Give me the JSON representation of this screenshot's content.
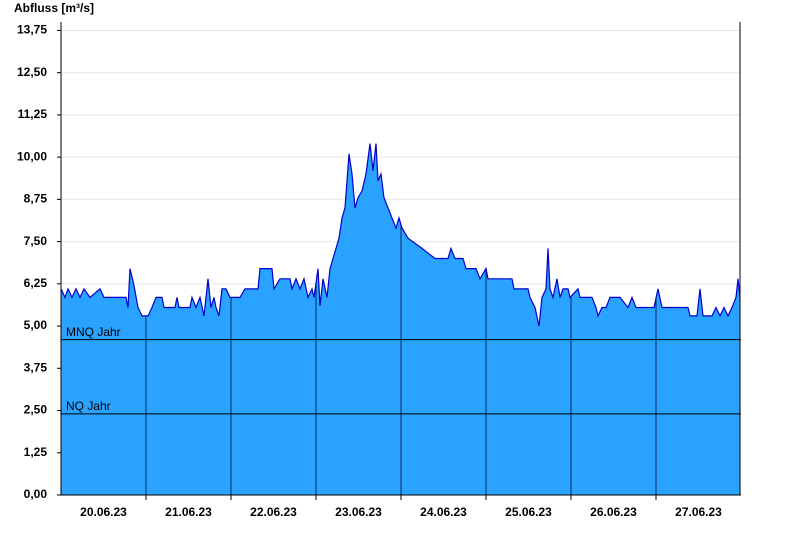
{
  "chart_data": {
    "type": "area",
    "y_label": "Abfluss [m³/s]",
    "xlim": [
      0,
      8
    ],
    "xticks": [
      {
        "value": 0.5,
        "label": "20.06.23"
      },
      {
        "value": 1.5,
        "label": "21.06.23"
      },
      {
        "value": 2.5,
        "label": "22.06.23"
      },
      {
        "value": 3.5,
        "label": "23.06.23"
      },
      {
        "value": 4.5,
        "label": "24.06.23"
      },
      {
        "value": 5.5,
        "label": "25.06.23"
      },
      {
        "value": 6.5,
        "label": "26.06.23"
      },
      {
        "value": 7.5,
        "label": "27.06.23"
      }
    ],
    "ylim": [
      0,
      14
    ],
    "yticks": [
      {
        "value": 0,
        "label": "0,00"
      },
      {
        "value": 1.25,
        "label": "1,25"
      },
      {
        "value": 2.5,
        "label": "2,50"
      },
      {
        "value": 3.75,
        "label": "3,75"
      },
      {
        "value": 5,
        "label": "5,00"
      },
      {
        "value": 6.25,
        "label": "6,25"
      },
      {
        "value": 7.5,
        "label": "7,50"
      },
      {
        "value": 8.75,
        "label": "8,75"
      },
      {
        "value": 10,
        "label": "10,00"
      },
      {
        "value": 11.25,
        "label": "11,25"
      },
      {
        "value": 12.5,
        "label": "12,50"
      },
      {
        "value": 13.75,
        "label": "13,75"
      }
    ],
    "grid": true,
    "annotations": [
      {
        "label": "MNQ Jahr",
        "value": 4.6
      },
      {
        "label": "NQ Jahr",
        "value": 2.4
      }
    ],
    "series": [
      {
        "name": "Abfluss",
        "color": "#0000cc",
        "fill": "#29a3ff",
        "x": [
          0,
          0.047,
          0.082,
          0.129,
          0.176,
          0.224,
          0.271,
          0.341,
          0.459,
          0.506,
          0.765,
          0.788,
          0.812,
          0.859,
          0.906,
          0.953,
          1.024,
          1.071,
          1.118,
          1.188,
          1.212,
          1.341,
          1.365,
          1.388,
          1.518,
          1.541,
          1.588,
          1.635,
          1.682,
          1.729,
          1.765,
          1.8,
          1.824,
          1.859,
          1.894,
          1.941,
          1.988,
          2.106,
          2.165,
          2.318,
          2.341,
          2.482,
          2.506,
          2.576,
          2.694,
          2.718,
          2.765,
          2.812,
          2.859,
          2.906,
          2.953,
          2.976,
          3.024,
          3.047,
          3.082,
          3.129,
          3.165,
          3.2,
          3.235,
          3.271,
          3.306,
          3.341,
          3.388,
          3.424,
          3.459,
          3.494,
          3.541,
          3.588,
          3.635,
          3.671,
          3.706,
          3.729,
          3.765,
          3.8,
          3.847,
          3.894,
          3.941,
          3.976,
          4.012,
          4.082,
          4.247,
          4.4,
          4.553,
          4.588,
          4.635,
          4.729,
          4.765,
          4.882,
          4.929,
          5,
          5.024,
          5.306,
          5.329,
          5.494,
          5.518,
          5.576,
          5.624,
          5.659,
          5.706,
          5.729,
          5.753,
          5.788,
          5.835,
          5.871,
          5.906,
          5.965,
          5.988,
          6.082,
          6.106,
          6.247,
          6.294,
          6.318,
          6.365,
          6.412,
          6.459,
          6.576,
          6.671,
          6.718,
          6.765,
          6.976,
          7.024,
          7.071,
          7.188,
          7.376,
          7.4,
          7.482,
          7.518,
          7.553,
          7.659,
          7.706,
          7.753,
          7.8,
          7.847,
          7.894,
          7.941,
          7.965,
          7.988
        ],
        "values": [
          6.1,
          5.85,
          6.1,
          5.85,
          6.1,
          5.85,
          6.1,
          5.85,
          6.1,
          5.85,
          5.85,
          5.55,
          6.7,
          6.2,
          5.55,
          5.3,
          5.3,
          5.55,
          5.85,
          5.85,
          5.55,
          5.55,
          5.85,
          5.55,
          5.55,
          5.85,
          5.55,
          5.85,
          5.3,
          6.4,
          5.55,
          5.85,
          5.55,
          5.3,
          6.1,
          6.1,
          5.85,
          5.85,
          6.1,
          6.1,
          6.7,
          6.7,
          6.1,
          6.4,
          6.4,
          6.1,
          6.4,
          6.1,
          6.4,
          5.85,
          6.1,
          5.85,
          6.7,
          5.6,
          6.4,
          5.85,
          6.7,
          7.0,
          7.3,
          7.6,
          8.2,
          8.5,
          10.1,
          9.5,
          8.5,
          8.8,
          9.0,
          9.5,
          10.4,
          9.6,
          10.4,
          9.3,
          9.5,
          8.8,
          8.5,
          8.2,
          7.9,
          8.2,
          7.9,
          7.6,
          7.3,
          7.0,
          7.0,
          7.3,
          7.0,
          7.0,
          6.7,
          6.7,
          6.4,
          6.7,
          6.4,
          6.4,
          6.1,
          6.1,
          5.85,
          5.55,
          5.0,
          5.85,
          6.1,
          7.3,
          6.1,
          5.85,
          6.4,
          5.85,
          6.1,
          6.1,
          5.85,
          6.1,
          5.85,
          5.85,
          5.55,
          5.3,
          5.55,
          5.55,
          5.85,
          5.85,
          5.55,
          5.85,
          5.55,
          5.55,
          6.1,
          5.55,
          5.55,
          5.55,
          5.3,
          5.3,
          6.1,
          5.3,
          5.3,
          5.55,
          5.3,
          5.55,
          5.3,
          5.55,
          5.85,
          6.4,
          5.85
        ]
      }
    ]
  }
}
